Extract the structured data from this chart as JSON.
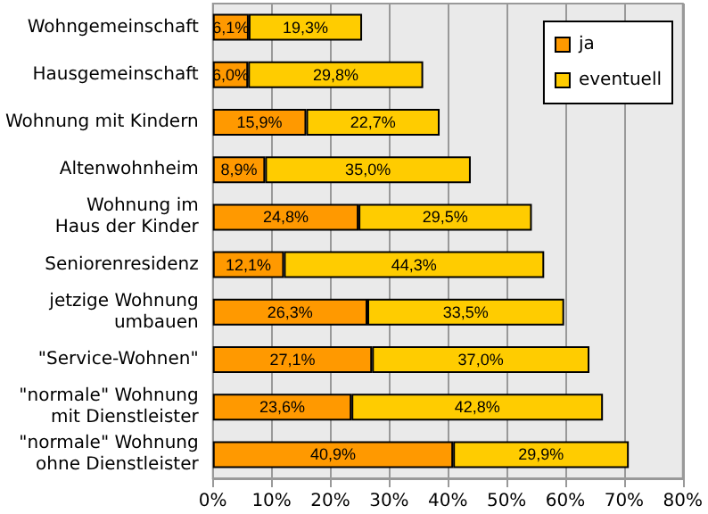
{
  "chart_data": {
    "type": "bar",
    "orientation": "horizontal",
    "stacked": true,
    "categories": [
      "Wohngemeinschaft",
      "Hausgemeinschaft",
      "Wohnung mit Kindern",
      "Altenwohnheim",
      "Wohnung im\nHaus der Kinder",
      "Seniorenresidenz",
      "jetzige Wohnung\numbauen",
      "\"Service-Wohnen\"",
      "\"normale\" Wohnung\nmit Dienstleister",
      "\"normale\" Wohnung\nohne Dienstleister"
    ],
    "series": [
      {
        "name": "ja",
        "color": "#ff9900",
        "values": [
          6.1,
          6.0,
          15.9,
          8.9,
          24.8,
          12.1,
          26.3,
          27.1,
          23.6,
          40.9
        ],
        "value_labels": [
          "6,1%",
          "6,0%",
          "15,9%",
          "8,9%",
          "24,8%",
          "12,1%",
          "26,3%",
          "27,1%",
          "23,6%",
          "40,9%"
        ]
      },
      {
        "name": "eventuell",
        "color": "#ffcc00",
        "values": [
          19.3,
          29.8,
          22.7,
          35.0,
          29.5,
          44.3,
          33.5,
          37.0,
          42.8,
          29.9
        ],
        "value_labels": [
          "19,3%",
          "29,8%",
          "22,7%",
          "35,0%",
          "29,5%",
          "44,3%",
          "33,5%",
          "37,0%",
          "42,8%",
          "29,9%"
        ]
      }
    ],
    "xlim": [
      0,
      80
    ],
    "xticks": [
      {
        "value": 0,
        "label": "0%"
      },
      {
        "value": 10,
        "label": "10%"
      },
      {
        "value": 20,
        "label": "20%"
      },
      {
        "value": 30,
        "label": "30%"
      },
      {
        "value": 40,
        "label": "40%"
      },
      {
        "value": 50,
        "label": "50%"
      },
      {
        "value": 60,
        "label": "60%"
      },
      {
        "value": 70,
        "label": "70%"
      },
      {
        "value": 80,
        "label": "80%"
      }
    ],
    "grid": "x",
    "legend": "top right"
  }
}
